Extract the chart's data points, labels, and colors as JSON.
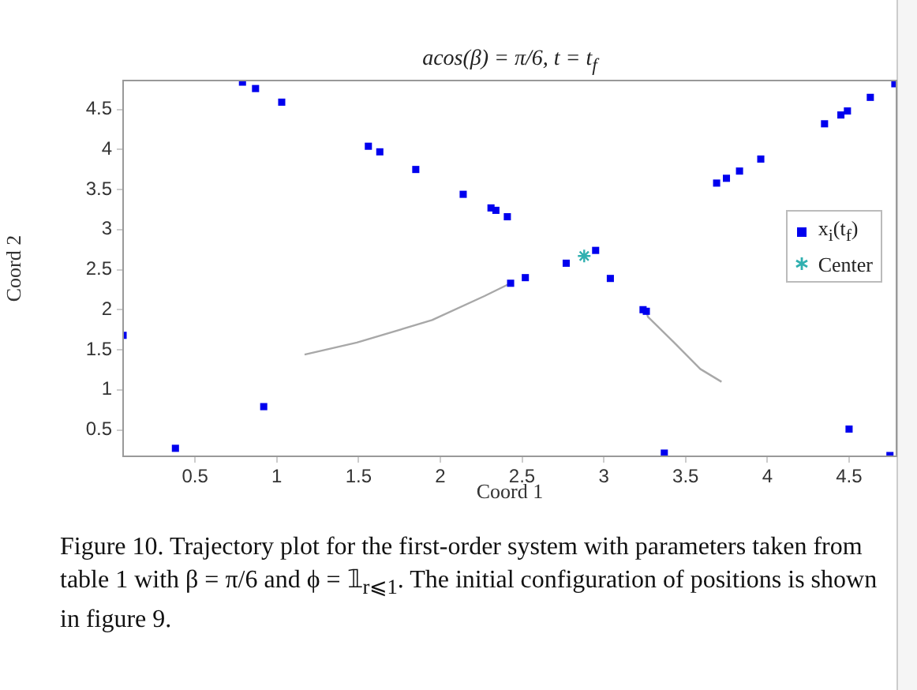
{
  "chart_data": {
    "type": "scatter",
    "title": "acos(β) = π/6, t = t$_{f}$",
    "xlabel": "Coord 1",
    "ylabel": "Coord 2",
    "xlim": [
      0.06,
      4.79
    ],
    "ylim": [
      0.17,
      4.86
    ],
    "xticks": [
      0.5,
      1,
      1.5,
      2,
      2.5,
      3,
      3.5,
      4,
      4.5
    ],
    "yticks": [
      0.5,
      1,
      1.5,
      2,
      2.5,
      3,
      3.5,
      4,
      4.5
    ],
    "grid": false,
    "legend": "right",
    "series": [
      {
        "name": "x$_{i}$(t$_{f}$)",
        "color": "#0000ee",
        "marker": "square",
        "x": [
          0.79,
          0.87,
          1.03,
          1.56,
          1.63,
          1.85,
          2.14,
          0.06,
          0.92,
          0.38,
          4.78,
          4.63,
          4.49,
          4.45,
          4.35,
          3.96,
          3.83,
          3.75,
          3.69,
          2.31,
          2.34,
          2.41,
          2.95,
          2.77,
          3.04,
          2.52,
          2.43,
          3.24,
          3.26,
          4.5,
          3.37,
          4.75
        ],
        "values": [
          4.84,
          4.76,
          4.59,
          4.04,
          3.97,
          3.75,
          3.44,
          1.68,
          0.79,
          0.27,
          4.82,
          4.65,
          4.48,
          4.43,
          4.32,
          3.88,
          3.73,
          3.64,
          3.58,
          3.27,
          3.24,
          3.16,
          2.74,
          2.58,
          2.39,
          2.4,
          2.33,
          2.0,
          1.98,
          0.51,
          0.21,
          0.18
        ]
      },
      {
        "name": "Center",
        "color": "#30b0b0",
        "marker": "cross",
        "x": [
          2.88
        ],
        "values": [
          2.67
        ]
      },
      {
        "type": "line",
        "color": "#a8a8a8",
        "marker": "none",
        "x": [
          1.17,
          1.49,
          1.95,
          2.27,
          2.43
        ],
        "values": [
          1.44,
          1.59,
          1.87,
          2.17,
          2.33
        ]
      },
      {
        "type": "line",
        "color": "#a8a8a8",
        "marker": "none",
        "x": [
          3.26,
          3.27,
          3.43,
          3.59,
          3.72
        ],
        "values": [
          1.98,
          1.91,
          1.59,
          1.26,
          1.1
        ]
      }
    ],
    "annotations": [
      "Figure 10. Trajectory plot for the first-order system with parameters taken from table 1 with β = π/6 and ϕ = 𝟙$_{r⩽1}$. The initial configuration of positions is shown in figure 9."
    ]
  }
}
